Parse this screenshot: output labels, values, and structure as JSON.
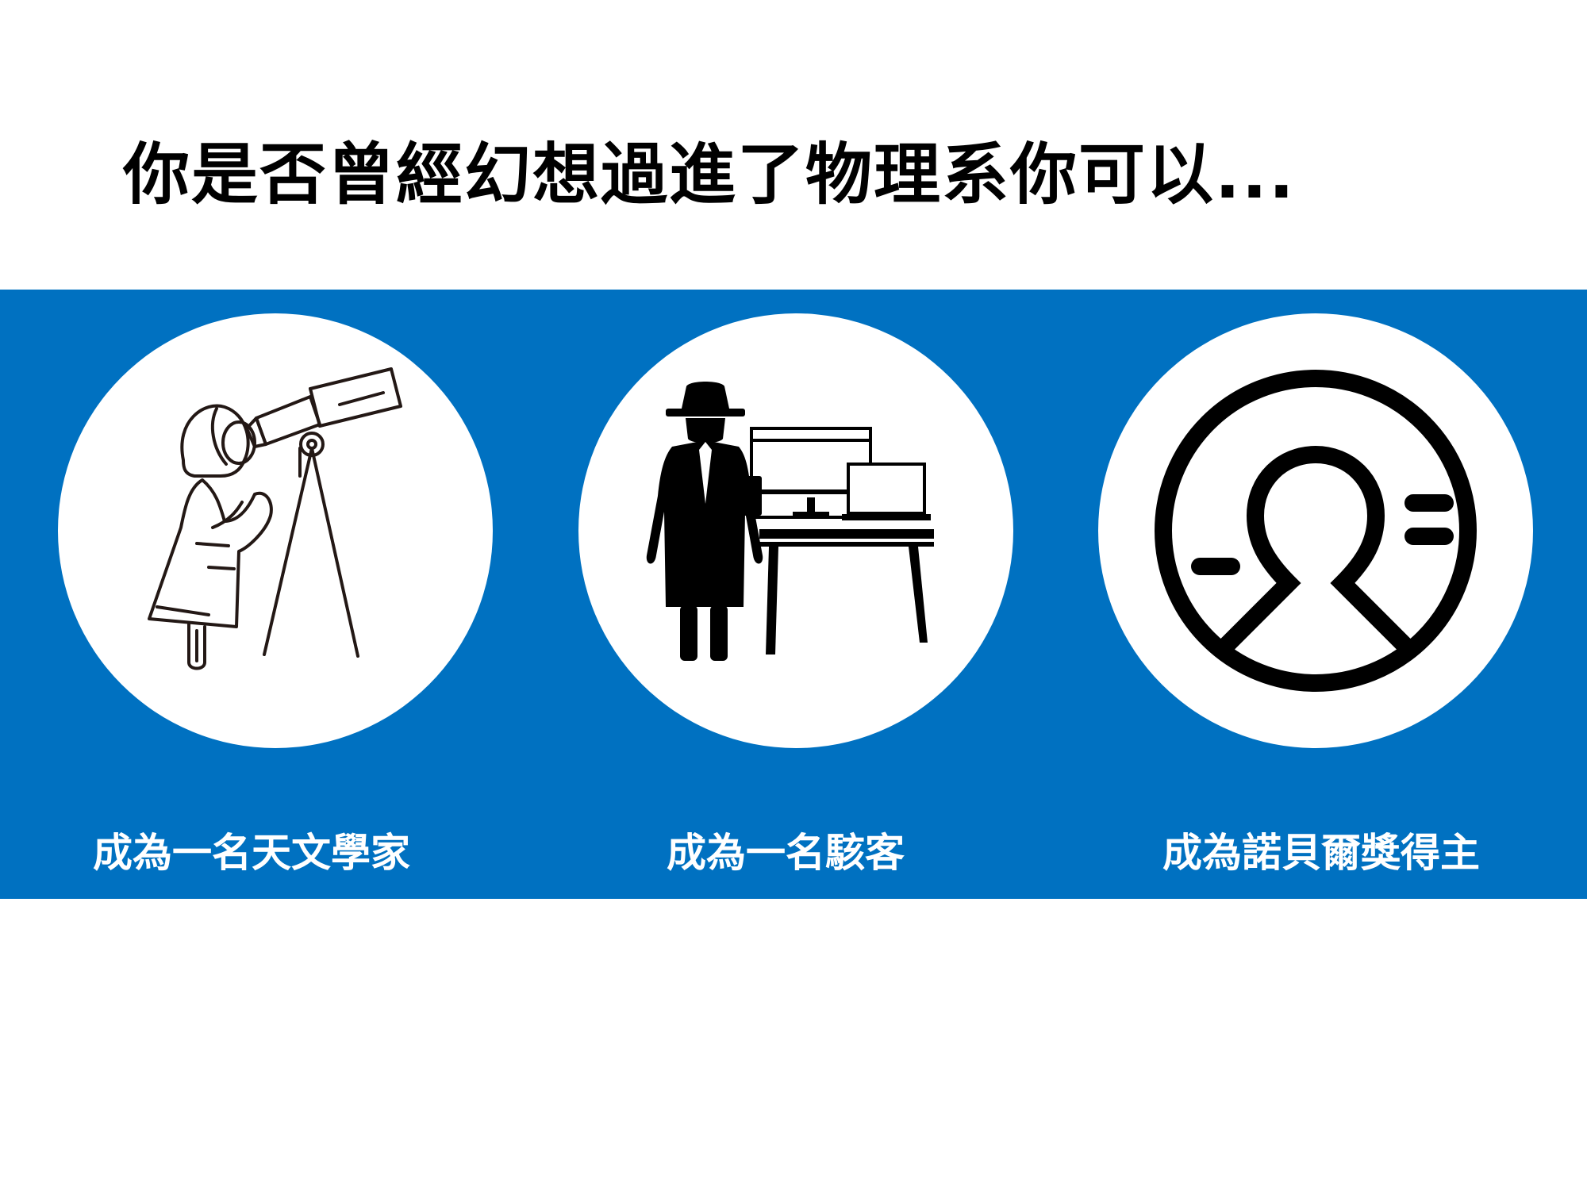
{
  "slide": {
    "title": "你是否曾經幻想過進了物理系你可以...",
    "accent_color": "#0071c1",
    "options": [
      {
        "icon": "astronomer-telescope-icon",
        "label": "成為一名天文學家"
      },
      {
        "icon": "hacker-computer-icon",
        "label": "成為一名駭客"
      },
      {
        "icon": "nobel-laureate-icon",
        "label": "成為諾貝爾獎得主"
      }
    ]
  }
}
